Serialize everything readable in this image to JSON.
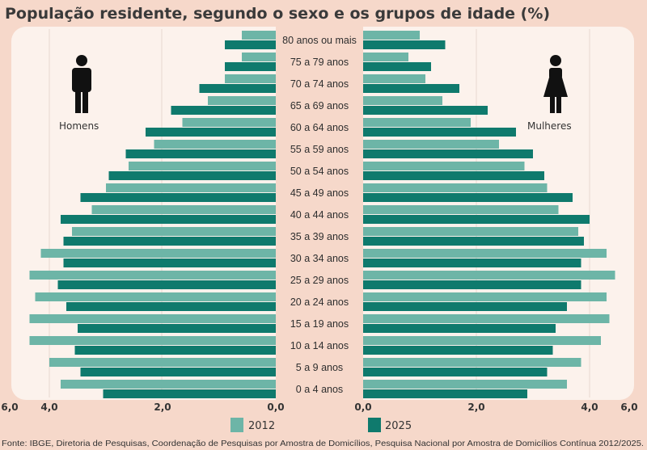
{
  "chart_data": {
    "type": "bar",
    "orientation": "population-pyramid",
    "title": "População residente, segundo o sexo e os grupos de idade (%)",
    "categories": [
      "80 anos ou mais",
      "75 a 79 anos",
      "70 a 74 anos",
      "65 a 69 anos",
      "60 a 64 anos",
      "55 a 59 anos",
      "50 a 54 anos",
      "45 a 49 anos",
      "40 a 44 anos",
      "35 a 39 anos",
      "30 a 34 anos",
      "25 a 29 anos",
      "20 a 24 anos",
      "15 a 19 anos",
      "10 a 14 anos",
      "5 a 9 anos",
      "0 a 4 anos"
    ],
    "sides": {
      "left": "Homens",
      "right": "Mulheres"
    },
    "series": [
      {
        "name": "2012",
        "side": "Homens",
        "color": "#6db5a7",
        "values": [
          0.6,
          0.6,
          0.9,
          1.2,
          1.65,
          2.15,
          2.6,
          3.0,
          3.25,
          3.6,
          4.15,
          4.35,
          4.25,
          4.35,
          4.35,
          4.0,
          3.8
        ]
      },
      {
        "name": "2025",
        "side": "Homens",
        "color": "#0f7a6d",
        "values": [
          0.9,
          0.9,
          1.35,
          1.85,
          2.3,
          2.65,
          2.95,
          3.45,
          3.8,
          3.75,
          3.75,
          3.85,
          3.7,
          3.5,
          3.55,
          3.45,
          3.05
        ]
      },
      {
        "name": "2012",
        "side": "Mulheres",
        "color": "#6db5a7",
        "values": [
          1.0,
          0.8,
          1.1,
          1.4,
          1.9,
          2.4,
          2.85,
          3.25,
          3.45,
          3.8,
          4.3,
          4.45,
          4.3,
          4.35,
          4.2,
          3.85,
          3.6
        ]
      },
      {
        "name": "2025",
        "side": "Mulheres",
        "color": "#0f7a6d",
        "values": [
          1.45,
          1.2,
          1.7,
          2.2,
          2.7,
          3.0,
          3.2,
          3.7,
          4.0,
          3.9,
          3.85,
          3.85,
          3.6,
          3.4,
          3.35,
          3.25,
          2.9
        ]
      }
    ],
    "x_ticks_left": [
      "6,0",
      "4,0",
      "2,0",
      "0,0"
    ],
    "x_ticks_right": [
      "0,0",
      "2,0",
      "4,0",
      "6,0"
    ],
    "xlim": [
      0,
      6
    ],
    "legend": [
      "2012",
      "2025"
    ],
    "legend_placement": "bottom",
    "source": "Fonte: IBGE, Diretoria de Pesquisas, Coordenação de Pesquisas por Amostra de Domicílios, Pesquisa Nacional por Amostra de Domicílios Contínua 2012/2025."
  }
}
